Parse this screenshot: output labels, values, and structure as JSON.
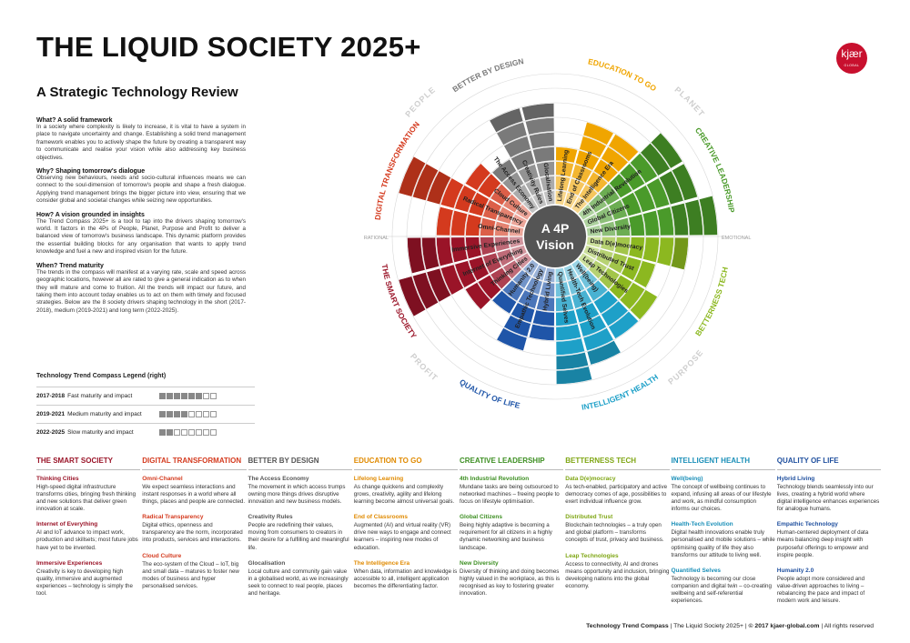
{
  "header": {
    "title": "THE LIQUID SOCIETY 2025+",
    "subtitle": "A Strategic Technology Review"
  },
  "logo": {
    "name": "kjær",
    "sub": "GLOBAL",
    "color": "#c8102e"
  },
  "intro": [
    {
      "heading": "What? A solid framework",
      "text": "In a society where complexity is likely to increase, it is vital to have a system in place to navigate uncertainty and change. Establishing a solid trend management framework enables you to actively shape the future by creating a transparent way to communicate and realise your vision while also addressing key business objectives."
    },
    {
      "heading": "Why? Shaping tomorrow's dialogue",
      "text": "Observing new behaviours, needs and socio-cultural influences means we can connect to the soul-dimension of tomorrow's people and shape a fresh dialogue. Applying trend management brings the bigger picture into view, ensuring that we consider global and societal changes while seizing new opportunities."
    },
    {
      "heading": "How? A vision grounded in insights",
      "text": "The Trend Compass 2025+ is a tool to tap into the drivers shaping tomorrow's world. It factors in the 4Ps of People, Planet, Purpose and Profit to deliver a balanced view of tomorrow's business landscape. This dynamic platform provides the essential building blocks for any organisation that wants to apply trend knowledge and fuel a new and inspired vision for the future."
    },
    {
      "heading": "When? Trend maturity",
      "text": "The trends in the compass will manifest at a varying rate, scale and speed across geographic locations, however all are rated to give a general indication as to when they will mature and come to fruition. All the trends will impact our future, and taking them into account today enables us to act on them with timely and focused strategies. Below are the 8 society drivers shaping technology in the short (2017-2018), medium (2019-2021) and long term (2022-2025)."
    }
  ],
  "legend": {
    "title": "Technology Trend Compass Legend (right)",
    "rows": [
      {
        "year": "2017-2018",
        "label": "Fast maturity and impact",
        "filled": 6,
        "total": 8
      },
      {
        "year": "2019-2021",
        "label": "Medium maturity and impact",
        "filled": 4,
        "total": 8
      },
      {
        "year": "2022-2025",
        "label": "Slow maturity and impact",
        "filled": 2,
        "total": 8
      }
    ]
  },
  "compass": {
    "center": [
      "A 4P",
      "Vision"
    ],
    "axis_left": "RATIONAL",
    "axis_right": "EMOTIONAL",
    "quadrants": [
      "PEOPLE",
      "PLANET",
      "PURPOSE",
      "PROFIT"
    ],
    "sectors": [
      {
        "name": "EDUCATION TO GO",
        "color": "#f0a500",
        "trends": [
          "Lifelong Learning",
          "End of Classrooms",
          "The Intelligence Era"
        ],
        "lengths": [
          4,
          6,
          6
        ]
      },
      {
        "name": "CREATIVE LEADERSHIP",
        "color": "#4a9a2a",
        "trends": [
          "4th Industrial Revolution",
          "Global Citizens",
          "New Diversity"
        ],
        "lengths": [
          8,
          8,
          9
        ]
      },
      {
        "name": "BETTERNESS TECH",
        "color": "#8cb820",
        "trends": [
          "Data D(e)mocracy",
          "Distributed Trust",
          "Leap Technologies"
        ],
        "lengths": [
          7,
          5,
          6
        ]
      },
      {
        "name": "INTELLIGENT HEALTH",
        "color": "#1ea0c8",
        "trends": [
          "Well(being)",
          "Health-Tech Evolution",
          "Quantified Selves"
        ],
        "lengths": [
          6,
          7,
          8
        ]
      },
      {
        "name": "QUALITY OF LIFE",
        "color": "#1f55a8",
        "trends": [
          "Hybrid Living",
          "Empathic Technology",
          "Humanity 2.0"
        ],
        "lengths": [
          5,
          6,
          4
        ]
      },
      {
        "name": "THE SMART SOCIETY",
        "color": "#9a1428",
        "trends": [
          "Thinking Cities",
          "Internet of Everything",
          "Immersive Experiences"
        ],
        "lengths": [
          5,
          9,
          8
        ]
      },
      {
        "name": "DIGITAL TRANSFORMATION",
        "color": "#d43a1e",
        "trends": [
          "Omni-Channel",
          "Radical Transparency",
          "Cloud Culture"
        ],
        "lengths": [
          6,
          9,
          5
        ]
      },
      {
        "name": "BETTER BY DESIGN",
        "color": "#7a7a7a",
        "trends": [
          "The Access Economy",
          "Creativity Rules",
          "Glocalisation"
        ],
        "lengths": [
          4,
          7,
          7
        ]
      }
    ]
  },
  "columns": [
    {
      "title": "THE SMART SOCIETY",
      "color": "#9a1428",
      "items": [
        {
          "title": "Thinking Cities",
          "text": "High-speed digital infrastructure transforms cities, bringing fresh thinking and new solutions that deliver green innovation at scale."
        },
        {
          "title": "Internet of Everything",
          "text": "AI and IoT advance to impact work, production and skillsets; most future jobs have yet to be invented."
        },
        {
          "title": "Immersive Experiences",
          "text": "Creativity is key to developing high quality, immersive and augmented experiences – technology is simply the tool."
        }
      ]
    },
    {
      "title": "DIGITAL TRANSFORMATION",
      "color": "#d43a1e",
      "items": [
        {
          "title": "Omni-Channel",
          "text": "We expect seamless interactions and instant responses in a world where all things, places and people are connected."
        },
        {
          "title": "Radical Transparency",
          "text": "Digital ethics, openness and transparency are the norm, incorporated into products, services and interactions."
        },
        {
          "title": "Cloud Culture",
          "text": "The eco-system of the Cloud – IoT, big and small data – matures to foster new modes of business and hyper personalised services."
        }
      ]
    },
    {
      "title": "BETTER BY DESIGN",
      "color": "#555555",
      "items": [
        {
          "title": "The Access Economy",
          "text": "The movement in which access trumps owning more things drives disruptive innovation and new business models."
        },
        {
          "title": "Creativity Rules",
          "text": "People are redefining their values, moving from consumers to creators in their desire for a fulfilling and meaningful life."
        },
        {
          "title": "Glocalisation",
          "text": "Local culture and community gain value in a globalised world, as we increasingly seek to connect to real people, places and heritage."
        }
      ]
    },
    {
      "title": "EDUCATION TO GO",
      "color": "#e08a00",
      "items": [
        {
          "title": "Lifelong Learning",
          "text": "As change quickens and complexity grows, creativity, agility and lifelong learning become almost universal goals."
        },
        {
          "title": "End of Classrooms",
          "text": "Augmented (AI) and virtual reality (VR) drive new ways to engage and connect learners – inspiring new modes of education."
        },
        {
          "title": "The Intelligence Era",
          "text": "When data, information and knowledge is accessible to all, intelligent application becomes the differentiating factor."
        }
      ]
    },
    {
      "title": "CREATIVE LEADERSHIP",
      "color": "#3d8f22",
      "items": [
        {
          "title": "4th Industrial Revolution",
          "text": "Mundane tasks are being outsourced to networked machines – freeing people to focus on lifestyle optimisation."
        },
        {
          "title": "Global Citizens",
          "text": "Being highly adaptive is becoming a requirement for all citizens in a highly dynamic networking and business landscape."
        },
        {
          "title": "New Diversity",
          "text": "Diversity of thinking and doing becomes highly valued in the workplace, as this is recognised as key to fostering greater innovation."
        }
      ]
    },
    {
      "title": "BETTERNESS TECH",
      "color": "#7fa614",
      "items": [
        {
          "title": "Data D(e)mocracy",
          "text": "As tech-enabled, participatory and active democracy comes of age, possibilities to exert individual influence grow."
        },
        {
          "title": "Distributed Trust",
          "text": "Blockchain technologies – a truly open and global platform – transforms concepts of trust, privacy and business."
        },
        {
          "title": "Leap Technologies",
          "text": "Access to connectivity, AI and drones means opportunity and inclusion, bringing developing nations into the global economy."
        }
      ]
    },
    {
      "title": "INTELLIGENT HEALTH",
      "color": "#1a8fb8",
      "items": [
        {
          "title": "Well(being)",
          "text": "The concept of wellbeing continues to expand, infusing all areas of our lifestyle and work, as mindful consumption informs our choices."
        },
        {
          "title": "Health-Tech Evolution",
          "text": "Digital health innovations enable truly personalised and mobile solutions – while optimising quality of life they also transforms our attitude to living well."
        },
        {
          "title": "Quantified Selves",
          "text": "Technology is becoming our close companion and digital twin – co-creating wellbeing and self-referential experiences."
        }
      ]
    },
    {
      "title": "QUALITY OF LIFE",
      "color": "#1f4f9e",
      "items": [
        {
          "title": "Hybrid Living",
          "text": "Technology blends seamlessly into our lives, creating a hybrid world where digital intelligence enhances experiences for analogue humans."
        },
        {
          "title": "Empathic Technology",
          "text": "Human-centered deployment of data means balancing deep insight with purposeful offerings to empower and inspire people."
        },
        {
          "title": "Humanity 2.0",
          "text": "People adopt more considered and value-driven approaches to living – rebalancing the pace and impact of modern work and leisure."
        }
      ]
    }
  ],
  "footer": {
    "brand": "Technology Trend Compass",
    "text": " | The Liquid Society 2025+ | ",
    "copyright": "© 2017 kjaer-global.com",
    "rights": " | All rights reserved"
  }
}
